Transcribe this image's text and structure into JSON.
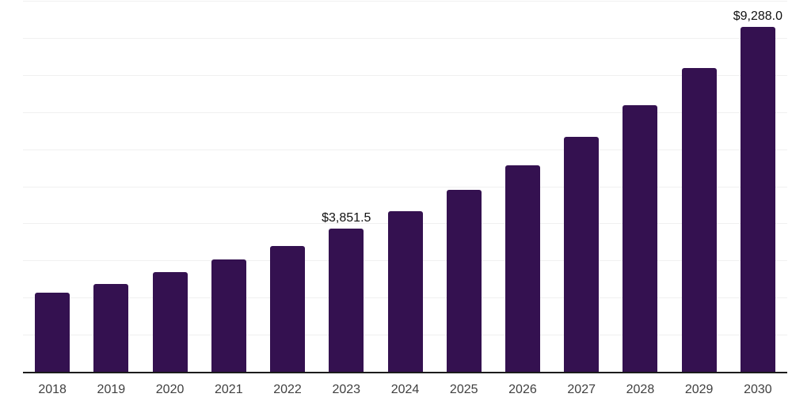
{
  "chart_data": {
    "type": "bar",
    "title": "",
    "xlabel": "",
    "ylabel": "",
    "categories": [
      "2018",
      "2019",
      "2020",
      "2021",
      "2022",
      "2023",
      "2024",
      "2025",
      "2026",
      "2027",
      "2028",
      "2029",
      "2030"
    ],
    "values": [
      2140,
      2375,
      2690,
      3020,
      3400,
      3851.5,
      4320,
      4900,
      5560,
      6340,
      7190,
      8180,
      9288
    ],
    "bar_labels": [
      "",
      "",
      "",
      "",
      "",
      "$3,851.5",
      "",
      "",
      "",
      "",
      "",
      "",
      "$9,288.0"
    ],
    "ylim": [
      0,
      10000
    ],
    "gridline_step": 1000,
    "grid": "horizontal-only",
    "legend": "none",
    "y_tick_labels": "none",
    "colors": {
      "bar": "#341150",
      "gridline": "#F0F0F0",
      "axis_line": "#1C1C1C",
      "x_tick_label": "#404040",
      "value_label": "#111111",
      "background": "#FFFFFF"
    }
  }
}
